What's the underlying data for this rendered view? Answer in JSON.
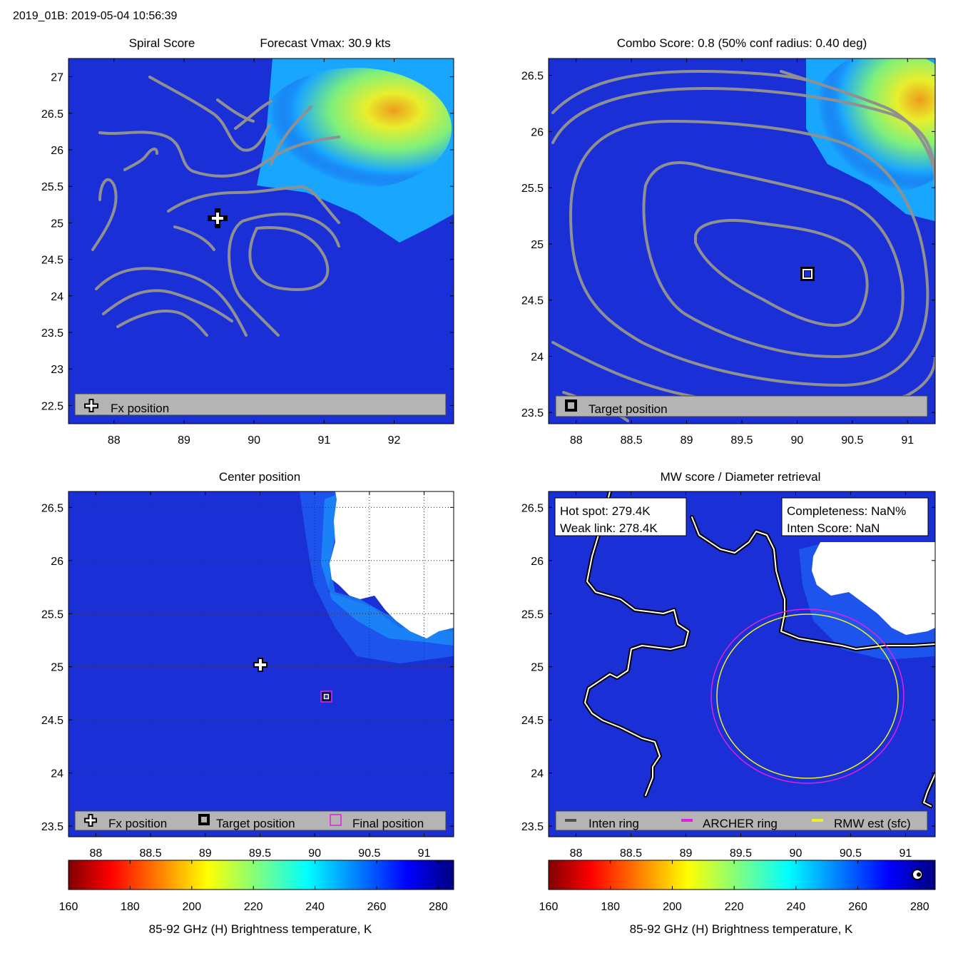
{
  "header": {
    "title": "2019_01B: 2019-05-04 10:56:39"
  },
  "colors": {
    "field_blue": "#1a2fd6",
    "warm_cyan": "#19a6ff",
    "warm_green": "#7ff07a",
    "warm_yellow": "#e8ef2c",
    "warm_orange": "#ee9b1c",
    "contour_gray": "#909090",
    "legend_gray": "#b4b4b4",
    "archer_ring": "#e020e0",
    "rmw_ring": "#f0f020",
    "inten_ring": "#505050"
  },
  "chart_data": [
    {
      "id": "spiral",
      "type": "heatmap",
      "title": "Spiral Score",
      "title_right": "Forecast Vmax: 30.9 kts",
      "xlabel": "",
      "ylabel": "",
      "xlim": [
        87.35,
        92.85
      ],
      "ylim": [
        22.25,
        27.25
      ],
      "xticks": [
        "88",
        "89",
        "90",
        "91",
        "92"
      ],
      "yticks": [
        "22.5",
        "23",
        "23.5",
        "24",
        "24.5",
        "25",
        "25.5",
        "26",
        "26.5",
        "27"
      ],
      "grid": false,
      "fx_position": {
        "lon": 89.5,
        "lat": 25.03
      },
      "legend": [
        "Fx position"
      ],
      "contours": "spiral-score-contours"
    },
    {
      "id": "combo",
      "type": "heatmap",
      "title": "Combo Score: 0.8  (50% conf radius: 0.40 deg)",
      "xlabel": "",
      "ylabel": "",
      "xlim": [
        87.75,
        91.25
      ],
      "ylim": [
        23.4,
        26.65
      ],
      "xticks": [
        "88",
        "88.5",
        "89",
        "89.5",
        "90",
        "90.5",
        "91"
      ],
      "yticks": [
        "23.5",
        "24",
        "24.5",
        "25",
        "25.5",
        "26",
        "26.5"
      ],
      "grid": false,
      "target_position": {
        "lon": 90.08,
        "lat": 24.73
      },
      "legend": [
        "Target position"
      ],
      "contours": "combo-score-contours"
    },
    {
      "id": "center",
      "type": "heatmap",
      "title": "Center position",
      "xlabel": "",
      "ylabel": "",
      "xlim": [
        87.75,
        91.27
      ],
      "ylim": [
        23.4,
        26.65
      ],
      "xticks": [
        "88",
        "88.5",
        "89",
        "89.5",
        "90",
        "90.5",
        "91"
      ],
      "yticks": [
        "23.5",
        "24",
        "24.5",
        "25",
        "25.5",
        "26",
        "26.5"
      ],
      "grid": true,
      "fx_position": {
        "lon": 89.5,
        "lat": 25.03
      },
      "target_position": {
        "lon": 90.08,
        "lat": 24.73
      },
      "final_position": {
        "lon": 90.08,
        "lat": 24.73
      },
      "legend": [
        "Fx position",
        "Target position",
        "Final position"
      ],
      "colorbar": {
        "label": "85-92 GHz (H) Brightness temperature, K",
        "range": [
          160,
          285
        ],
        "ticks": [
          "160",
          "180",
          "200",
          "220",
          "240",
          "260",
          "280"
        ]
      }
    },
    {
      "id": "mw",
      "type": "heatmap",
      "title": "MW score / Diameter retrieval",
      "xlabel": "",
      "ylabel": "",
      "xlim": [
        87.75,
        91.27
      ],
      "ylim": [
        23.4,
        26.65
      ],
      "xticks": [
        "88",
        "88.5",
        "89",
        "89.5",
        "90",
        "90.5",
        "91"
      ],
      "yticks": [
        "23.5",
        "24",
        "24.5",
        "25",
        "25.5",
        "26",
        "26.5"
      ],
      "grid": false,
      "info_left": [
        "Hot spot: 279.4K",
        "Weak link: 278.4K"
      ],
      "info_right": [
        "Completeness: NaN%",
        "Inten Score: NaN"
      ],
      "legend": [
        "Inten ring",
        "ARCHER ring",
        "RMW est (sfc)"
      ],
      "archer_ring": {
        "center": [
          90.08,
          24.73
        ],
        "radius_deg": 0.86
      },
      "colorbar": {
        "label": "85-92 GHz (H) Brightness temperature, K",
        "range": [
          160,
          285
        ],
        "ticks": [
          "160",
          "180",
          "200",
          "220",
          "240",
          "260",
          "280"
        ]
      }
    }
  ]
}
